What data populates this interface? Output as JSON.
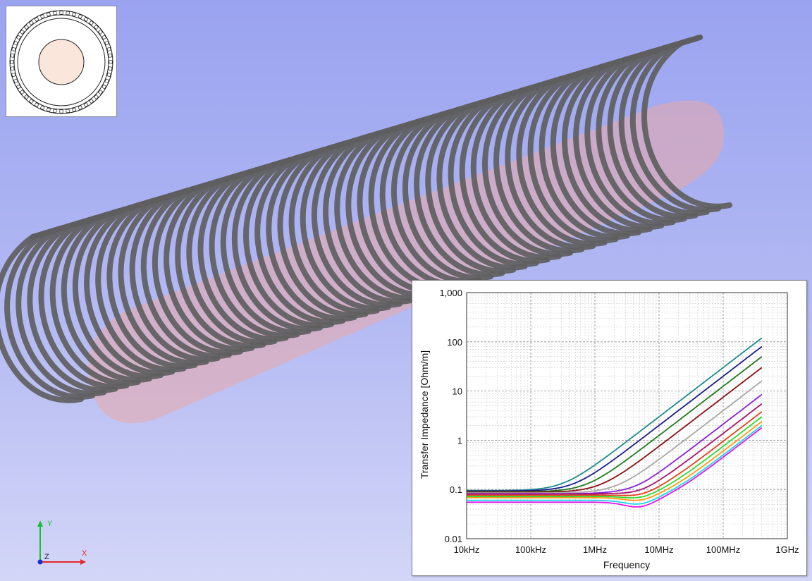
{
  "scene": {
    "background_top": "#9aa3f0",
    "background_bottom": "#d3d6f7",
    "wire_color": "#5e5e60",
    "inner_conductor_color": "#e9a8a8"
  },
  "cross_section_thumbnail": {
    "conductor_fill": "#fbe6dc",
    "icon": "coax-cross-section-icon"
  },
  "axes_triad": {
    "x_label": "X",
    "y_label": "Y",
    "z_label": "Z",
    "x_color": "#e8272a",
    "y_color": "#17c22f",
    "z_color": "#1a2bd8"
  },
  "chart_data": {
    "type": "line",
    "xlabel": "Frequency",
    "ylabel": "Transfer Impedance [Ohm/m]",
    "x_scale": "log",
    "y_scale": "log",
    "xlim": [
      10000,
      1000000000
    ],
    "ylim": [
      0.01,
      1000
    ],
    "x_ticks": [
      {
        "value": 10000,
        "label": "10kHz"
      },
      {
        "value": 100000,
        "label": "100kHz"
      },
      {
        "value": 1000000,
        "label": "1MHz"
      },
      {
        "value": 10000000,
        "label": "10MHz"
      },
      {
        "value": 100000000,
        "label": "100MHz"
      },
      {
        "value": 1000000000,
        "label": "1GHz"
      }
    ],
    "y_ticks": [
      {
        "value": 0.01,
        "label": "0.01"
      },
      {
        "value": 0.1,
        "label": "0.1"
      },
      {
        "value": 1,
        "label": "1"
      },
      {
        "value": 10,
        "label": "10"
      },
      {
        "value": 100,
        "label": "100"
      },
      {
        "value": 1000,
        "label": "1,000"
      }
    ],
    "grid": true,
    "series": [
      {
        "color": "#1f8a8a",
        "dc": 0.095,
        "end": 120
      },
      {
        "color": "#1c1c8c",
        "dc": 0.093,
        "end": 80
      },
      {
        "color": "#1f7a1f",
        "dc": 0.09,
        "end": 50
      },
      {
        "color": "#8b1010",
        "dc": 0.088,
        "end": 30
      },
      {
        "color": "#a8a8a8",
        "dc": 0.085,
        "end": 16
      },
      {
        "color": "#8a1fd8",
        "dc": 0.082,
        "end": 8.5
      },
      {
        "color": "#a8146e",
        "dc": 0.08,
        "end": 5.5
      },
      {
        "color": "#e8401a",
        "dc": 0.076,
        "end": 3.8
      },
      {
        "color": "#2edc2e",
        "dc": 0.072,
        "end": 3.0
      },
      {
        "color": "#ff9a14",
        "dc": 0.068,
        "end": 2.4
      },
      {
        "color": "#19d8e8",
        "dc": 0.06,
        "end": 2.0
      },
      {
        "color": "#e814e8",
        "dc": 0.055,
        "end": 1.8
      }
    ]
  }
}
